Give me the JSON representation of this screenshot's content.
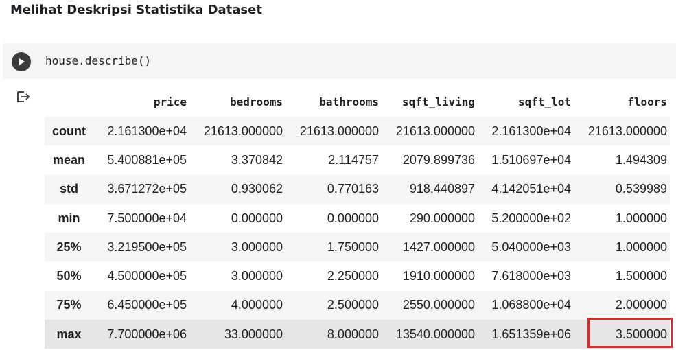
{
  "heading": "Melihat Deskripsi Statistika Dataset",
  "code": "house.describe()",
  "icons": {
    "run": "play-icon",
    "output": "output-redirect-icon"
  },
  "colors": {
    "highlight": "#d32f2f"
  },
  "table": {
    "columns": [
      "price",
      "bedrooms",
      "bathrooms",
      "sqft_living",
      "sqft_lot",
      "floors"
    ],
    "rows": [
      {
        "label": "count",
        "values": [
          "2.161300e+04",
          "21613.000000",
          "21613.000000",
          "21613.000000",
          "2.161300e+04",
          "21613.000000"
        ]
      },
      {
        "label": "mean",
        "values": [
          "5.400881e+05",
          "3.370842",
          "2.114757",
          "2079.899736",
          "1.510697e+04",
          "1.494309"
        ]
      },
      {
        "label": "std",
        "values": [
          "3.671272e+05",
          "0.930062",
          "0.770163",
          "918.440897",
          "4.142051e+04",
          "0.539989"
        ]
      },
      {
        "label": "min",
        "values": [
          "7.500000e+04",
          "0.000000",
          "0.000000",
          "290.000000",
          "5.200000e+02",
          "1.000000"
        ]
      },
      {
        "label": "25%",
        "values": [
          "3.219500e+05",
          "3.000000",
          "1.750000",
          "1427.000000",
          "5.040000e+03",
          "1.000000"
        ]
      },
      {
        "label": "50%",
        "values": [
          "4.500000e+05",
          "3.000000",
          "2.250000",
          "1910.000000",
          "7.618000e+03",
          "1.500000"
        ]
      },
      {
        "label": "75%",
        "values": [
          "6.450000e+05",
          "4.000000",
          "2.500000",
          "2550.000000",
          "1.068800e+04",
          "2.000000"
        ]
      },
      {
        "label": "max",
        "values": [
          "7.700000e+06",
          "33.000000",
          "8.000000",
          "13540.000000",
          "1.651359e+06",
          "3.500000"
        ]
      }
    ]
  }
}
